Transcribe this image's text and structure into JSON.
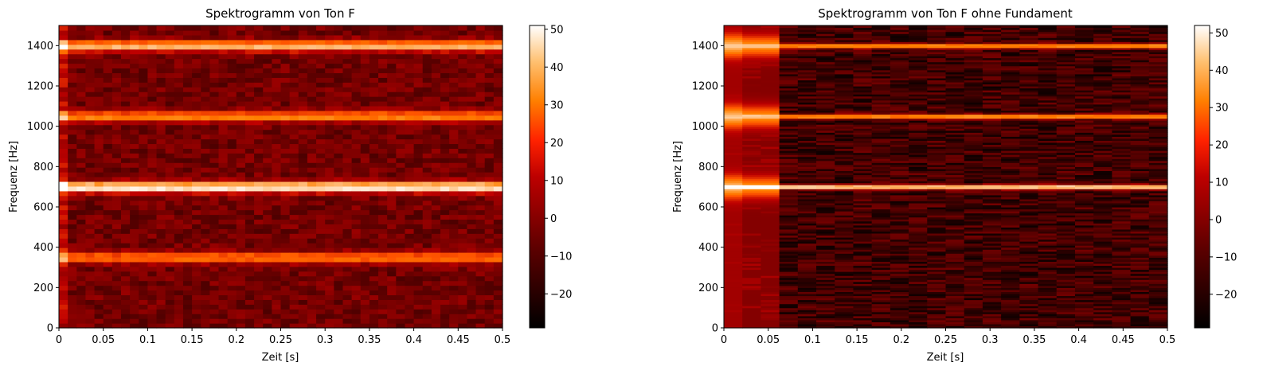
{
  "chart_data": [
    {
      "type": "heatmap",
      "title": "Spektrogramm von Ton F",
      "xlabel": "Zeit [s]",
      "ylabel": "Frequenz [Hz]",
      "xlim": [
        0,
        0.5
      ],
      "ylim": [
        0,
        1500
      ],
      "xticks": [
        "0",
        "0.05",
        "0.1",
        "0.15",
        "0.2",
        "0.25",
        "0.3",
        "0.35",
        "0.4",
        "0.45",
        "0.5"
      ],
      "yticks": [
        "0",
        "200",
        "400",
        "600",
        "800",
        "1000",
        "1200",
        "1400"
      ],
      "colormap": "gist_heat",
      "colorbar": {
        "min": -29,
        "max": 51,
        "ticks": [
          "−20",
          "−10",
          "0",
          "10",
          "20",
          "30",
          "40",
          "50"
        ]
      },
      "bands_hz": [
        {
          "freq": 350,
          "level_db": 30
        },
        {
          "freq": 700,
          "level_db": 51
        },
        {
          "freq": 1050,
          "level_db": 33
        },
        {
          "freq": 1400,
          "level_db": 41
        }
      ],
      "background_level_db": -5
    },
    {
      "type": "heatmap",
      "title": "Spektrogramm von Ton F ohne Fundament",
      "xlabel": "Zeit [s]",
      "ylabel": "Frequenz [Hz]",
      "xlim": [
        0,
        0.5
      ],
      "ylim": [
        0,
        1500
      ],
      "xticks": [
        "0",
        "0.05",
        "0.1",
        "0.15",
        "0.2",
        "0.25",
        "0.3",
        "0.35",
        "0.4",
        "0.45",
        "0.5"
      ],
      "yticks": [
        "0",
        "200",
        "400",
        "600",
        "800",
        "1000",
        "1200",
        "1400"
      ],
      "colormap": "gist_heat",
      "colorbar": {
        "min": -29,
        "max": 52,
        "ticks": [
          "−20",
          "−10",
          "0",
          "10",
          "20",
          "30",
          "40",
          "50"
        ]
      },
      "bands_hz": [
        {
          "freq": 700,
          "level_db": 52
        },
        {
          "freq": 1050,
          "level_db": 40
        },
        {
          "freq": 1400,
          "level_db": 40
        }
      ],
      "background_level_db": -15
    }
  ]
}
